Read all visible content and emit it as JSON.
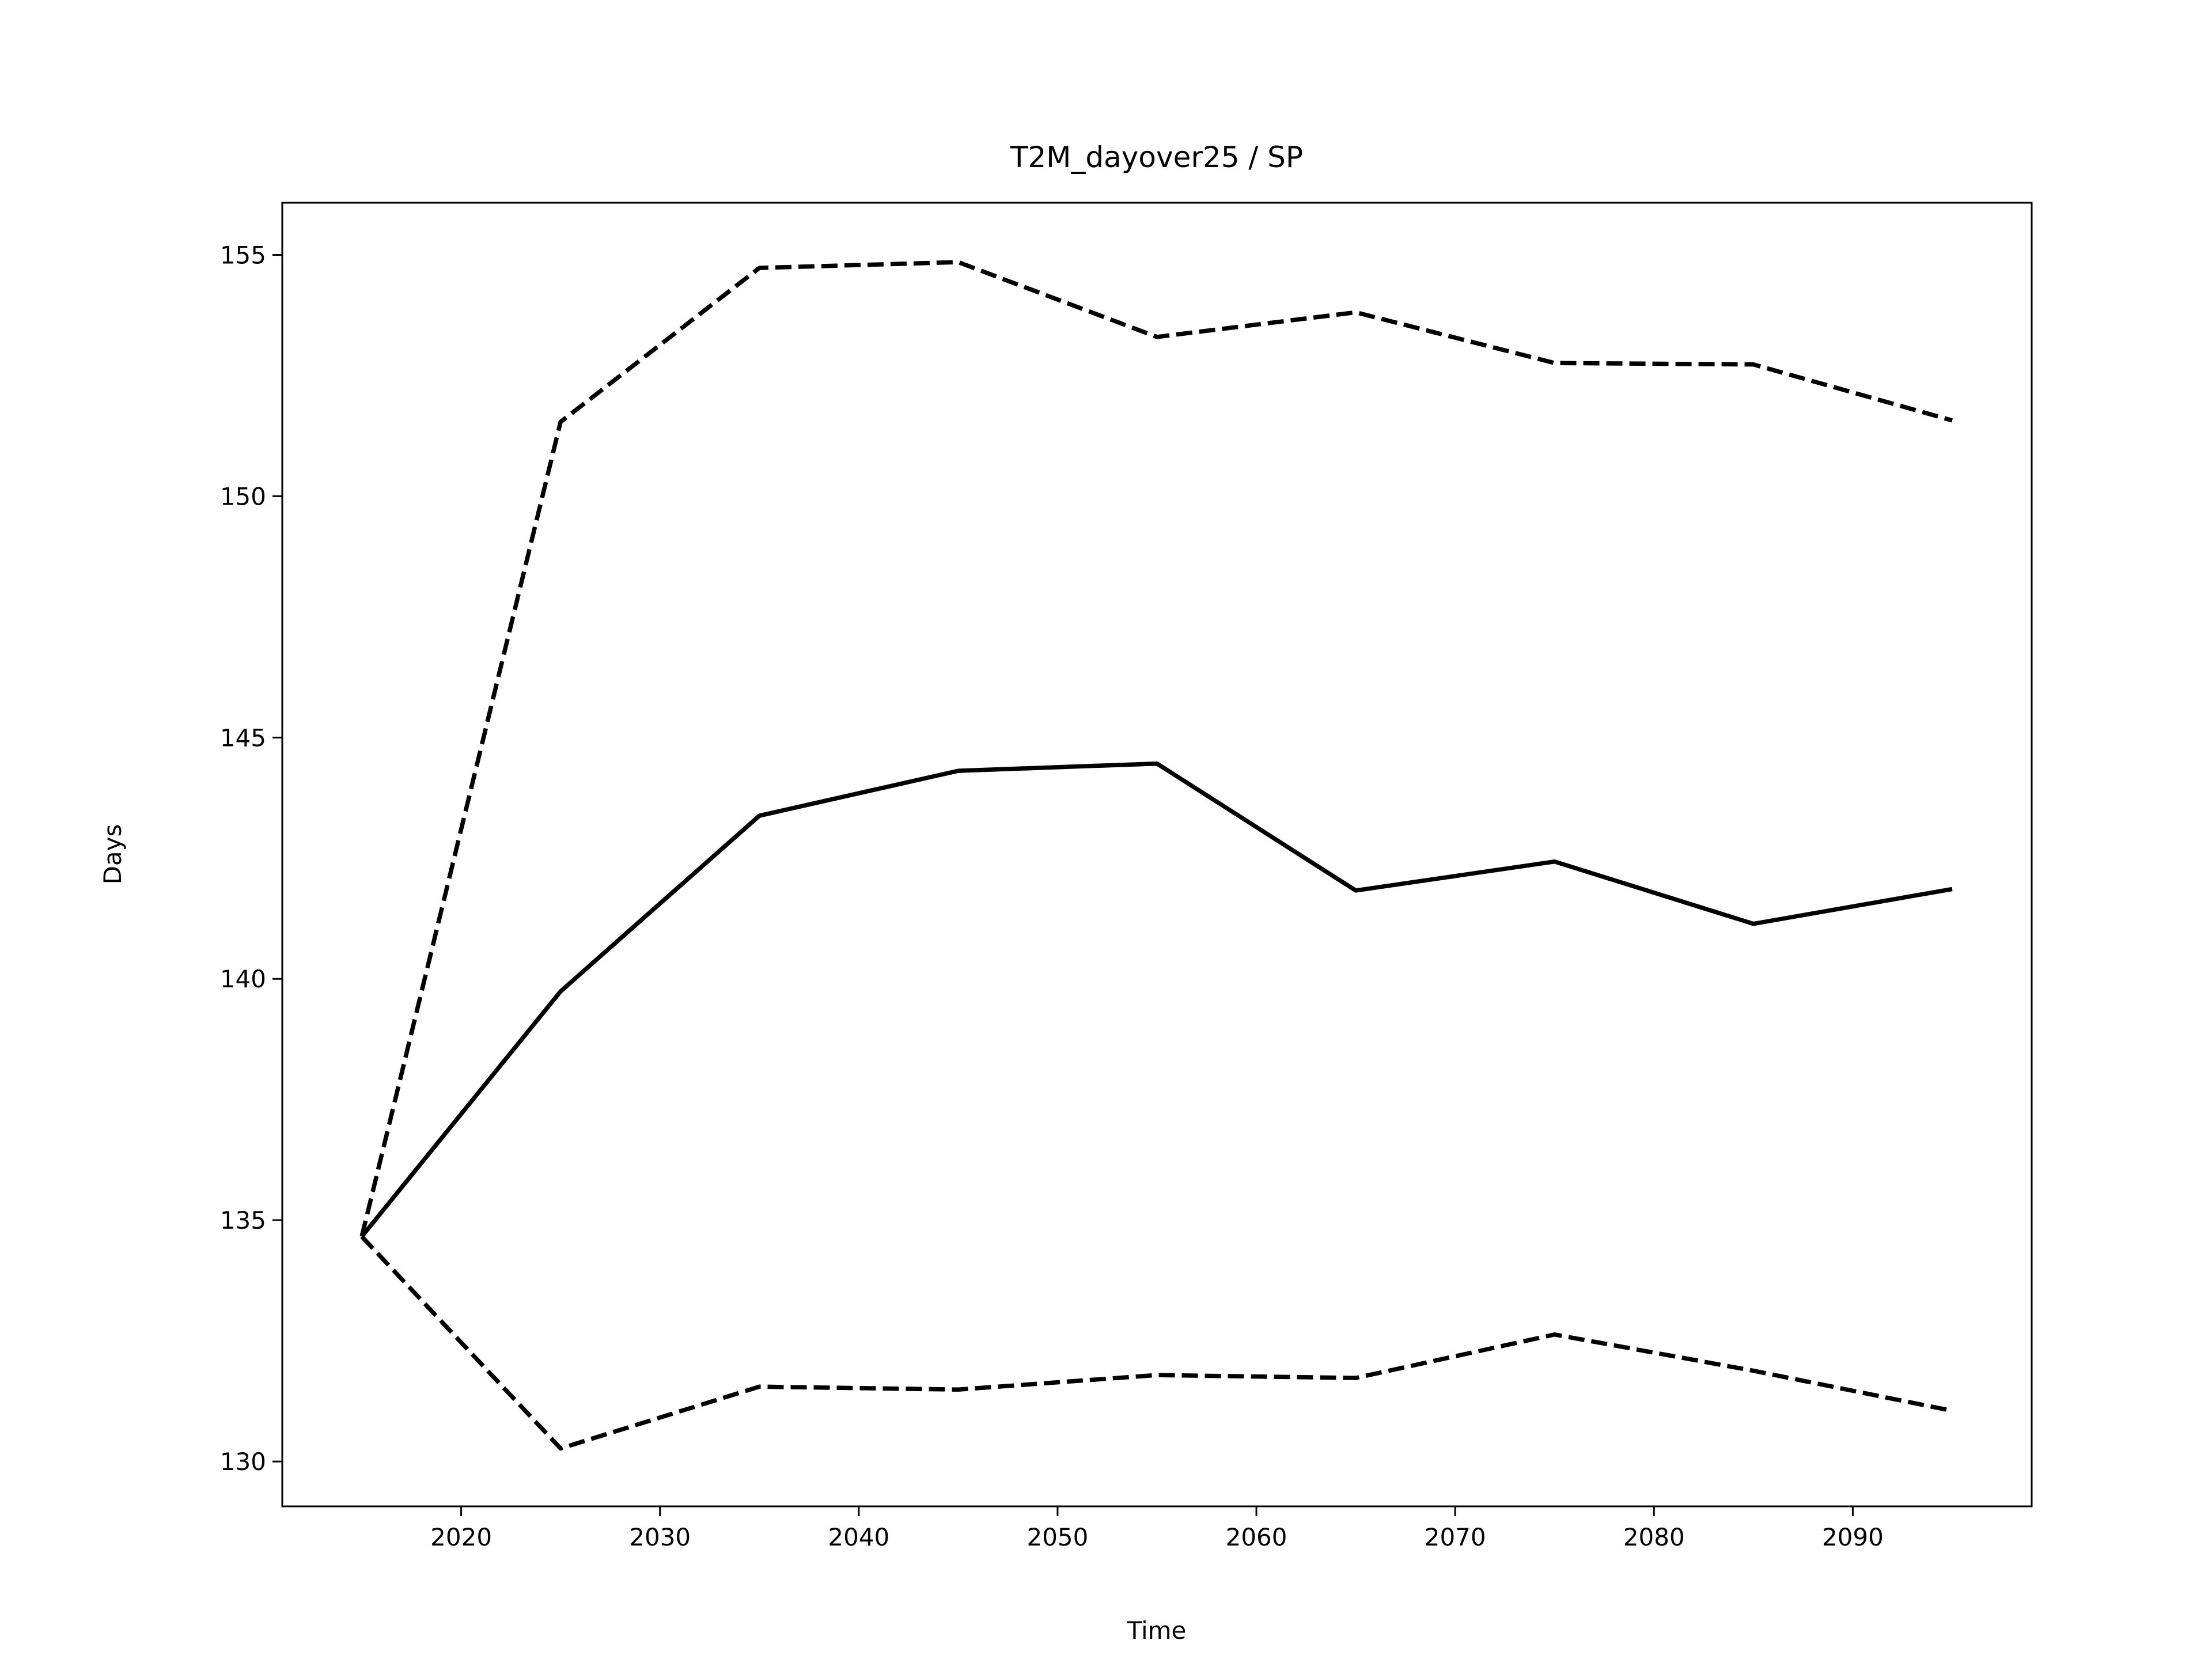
{
  "chart_data": {
    "type": "line",
    "title": "T2M_dayover25 / SP",
    "xlabel": "Time",
    "ylabel": "Days",
    "x": [
      2015,
      2025,
      2035,
      2045,
      2055,
      2065,
      2075,
      2085,
      2095
    ],
    "series": [
      {
        "color": "#000000",
        "style": "solid",
        "values": [
          134.66,
          139.74,
          143.38,
          144.31,
          144.46,
          141.83,
          142.43,
          141.14,
          141.86
        ]
      },
      {
        "color": "#000000",
        "style": "dashed",
        "values": [
          134.66,
          151.54,
          154.73,
          154.85,
          153.3,
          153.81,
          152.76,
          152.73,
          151.57
        ]
      },
      {
        "color": "#000000",
        "style": "dashed",
        "values": [
          134.66,
          130.27,
          131.55,
          131.49,
          131.79,
          131.73,
          132.63,
          131.88,
          131.05
        ]
      }
    ],
    "xlim": [
      2011,
      2099
    ],
    "xticks": [
      2020,
      2030,
      2040,
      2050,
      2060,
      2070,
      2080,
      2090
    ],
    "ylim": [
      129.07,
      156.08
    ],
    "yticks": [
      130,
      135,
      140,
      145,
      150,
      155
    ],
    "grid": false
  }
}
